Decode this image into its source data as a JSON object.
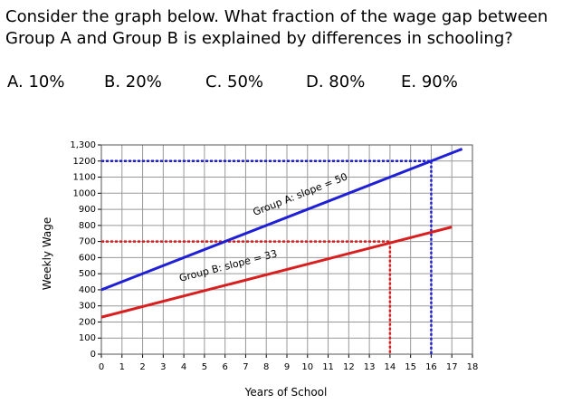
{
  "question": [
    "Consider the graph below.  What fraction of the wage gap between",
    "Group A and Group B is explained by differences in schooling?"
  ],
  "options": [
    "A.  10%",
    "B.  20%",
    "C. 50%",
    "D. 80%",
    "E.  90%"
  ],
  "chart_data": {
    "type": "line",
    "x_label": "Years of School",
    "y_label": "Weekly Wage",
    "xlim": [
      0,
      18
    ],
    "xticks": [
      0,
      1,
      2,
      3,
      4,
      5,
      6,
      7,
      8,
      9,
      10,
      11,
      12,
      13,
      14,
      15,
      16,
      17,
      18
    ],
    "ylim": [
      0,
      1300
    ],
    "yticks": [
      0,
      100,
      200,
      300,
      400,
      500,
      600,
      700,
      800,
      900,
      1000,
      1100,
      1200,
      {
        "value": 1300,
        "label": "1,300"
      }
    ],
    "grid": true,
    "series": [
      {
        "name": "Group A",
        "color": "#1f1fd6",
        "x": [
          0,
          17.5
        ],
        "values": [
          400,
          1275
        ]
      },
      {
        "name": "Group B",
        "color": "#d81e1e",
        "x": [
          0,
          17
        ],
        "values": [
          230,
          790
        ]
      }
    ],
    "reference_lines": [
      {
        "x": 14,
        "y": 700,
        "color": "#d81e1e"
      },
      {
        "x": 16,
        "y": 1200,
        "color": "#1f1fd6"
      }
    ],
    "annotations": [
      "Group A: slope = 50",
      "Group B: slope = 33"
    ]
  }
}
